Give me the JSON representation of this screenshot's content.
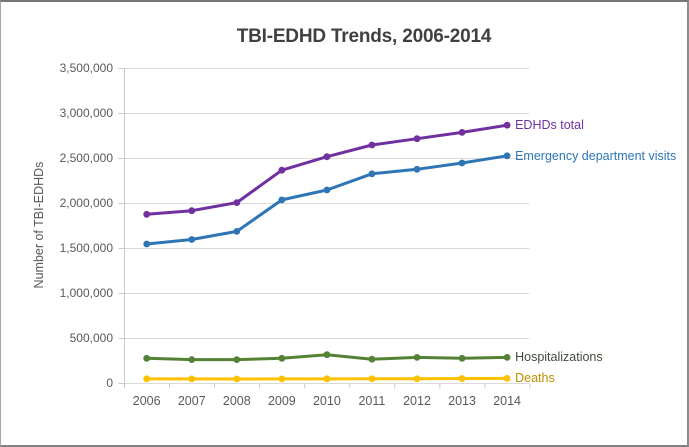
{
  "chart": {
    "title": "TBI-EDHD Trends, 2006-2014",
    "ylabel": "Number of TBI-EDHDs"
  },
  "chart_data": {
    "type": "line",
    "title": "TBI-EDHD Trends, 2006-2014",
    "xlabel": "",
    "ylabel": "Number of TBI-EDHDs",
    "categories": [
      "2006",
      "2007",
      "2008",
      "2009",
      "2010",
      "2011",
      "2012",
      "2013",
      "2014"
    ],
    "y_tick_labels": [
      "3,500,000",
      "3,000,000",
      "2,500,000",
      "2,000,000",
      "1,500,000",
      "1,000,000",
      "500,000",
      "0"
    ],
    "y_tick_values": [
      3500000,
      3000000,
      2500000,
      2000000,
      1500000,
      1000000,
      500000,
      0
    ],
    "ylim": [
      0,
      3500000
    ],
    "grid": "horizontal",
    "legend_position": "labels-at-line-ends",
    "series": [
      {
        "name": "EDHDs total",
        "color": "#7030A0",
        "label_color": "#7030A0",
        "values": [
          1880000,
          1920000,
          2010000,
          2370000,
          2520000,
          2650000,
          2720000,
          2790000,
          2870000
        ]
      },
      {
        "name": "Emergency department visits",
        "color": "#2E75B6",
        "label_color": "#2E75B6",
        "values": [
          1550000,
          1600000,
          1690000,
          2040000,
          2150000,
          2330000,
          2380000,
          2450000,
          2530000
        ]
      },
      {
        "name": "Hospitalizations",
        "color": "#548235",
        "label_color": "#3F4D37",
        "values": [
          280000,
          265000,
          265000,
          280000,
          320000,
          270000,
          290000,
          280000,
          290000
        ]
      },
      {
        "name": "Deaths",
        "color": "#FFC000",
        "label_color": "#BF9000",
        "values": [
          52000,
          51000,
          50000,
          51000,
          52000,
          53000,
          53000,
          55000,
          57000
        ]
      }
    ],
    "colors": {
      "gridline": "#D9D9D9",
      "axis": "#C9C9C9",
      "title_text": "#404040",
      "axis_text": "#595959"
    }
  }
}
